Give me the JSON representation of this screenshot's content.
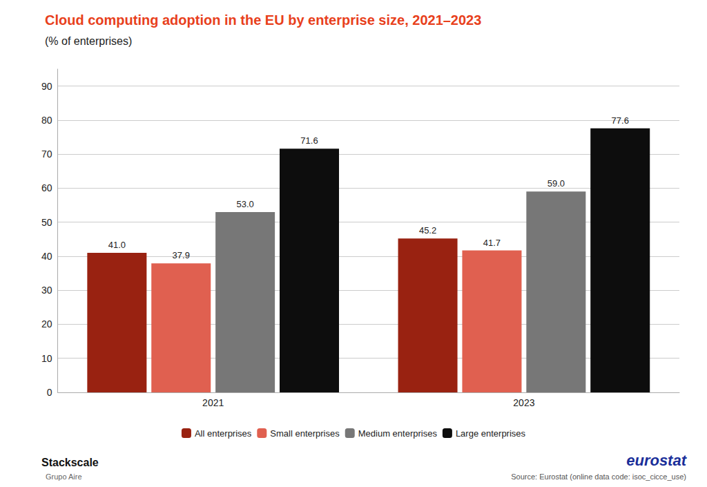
{
  "chart_data": {
    "type": "bar",
    "title": "Cloud computing adoption in the EU by enterprise size, 2021–2023",
    "subtitle": "(% of enterprises)",
    "categories": [
      "2021",
      "2023"
    ],
    "series": [
      {
        "name": "All enterprises",
        "color": "#992211",
        "values": [
          41.0,
          45.2
        ],
        "value_labels": [
          "41.0",
          "45.2"
        ]
      },
      {
        "name": "Small enterprises",
        "color": "#e06050",
        "values": [
          37.9,
          41.7
        ],
        "value_labels": [
          "37.9",
          "41.7"
        ]
      },
      {
        "name": "Medium enterprises",
        "color": "#777777",
        "values": [
          53.0,
          59.0
        ],
        "value_labels": [
          "53.0",
          "59.0"
        ]
      },
      {
        "name": "Large enterprises",
        "color": "#0d0d0d",
        "values": [
          71.6,
          77.6
        ],
        "value_labels": [
          "71.6",
          "77.6"
        ]
      }
    ],
    "ylim": [
      0,
      95
    ],
    "yticks": [
      0,
      10,
      20,
      30,
      40,
      50,
      60,
      70,
      80,
      90
    ],
    "grid": true,
    "legend": "bottom",
    "data_labels": true,
    "annotations": [
      "Stackscale",
      "Grupo Aire",
      "eurostat",
      "Source: Eurostat (online data code: isoc_cicce_use)"
    ]
  }
}
